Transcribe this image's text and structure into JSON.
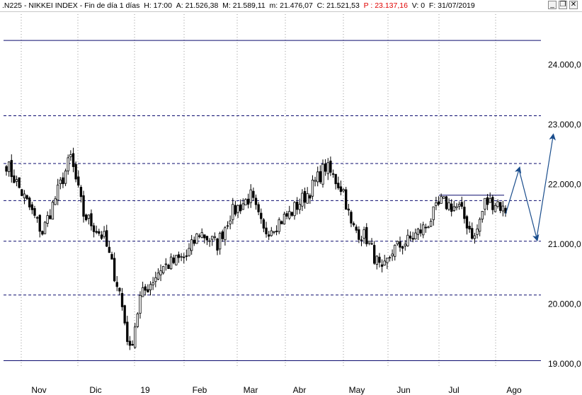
{
  "header": {
    "symbol": ".N225",
    "name": "NIKKEI INDEX",
    "period": "Fin de día 1 días",
    "time": "H: 17:00",
    "open": "A: 21.526,38",
    "high": "M: 21.589,11",
    "low": "m: 21.476,07",
    "close": "C: 21.521,53",
    "price": "P : 23.137,16",
    "volume": "V: 0",
    "date": "F: 31/07/2019",
    "price_color": "#e00000"
  },
  "window_buttons": [
    {
      "name": "minimize",
      "glyph": "_"
    },
    {
      "name": "restore",
      "glyph": "❐"
    },
    {
      "name": "close",
      "glyph": "✕"
    }
  ],
  "chart_data": {
    "type": "candlestick",
    "y_tick_labels": [
      "19.000,0",
      "20.000,0",
      "21.000,0",
      "22.000,0",
      "23.000,0",
      "24.000,0"
    ],
    "y_ticks": [
      19000,
      20000,
      21000,
      22000,
      23000,
      24000
    ],
    "ylim": [
      18950,
      24850
    ],
    "x_tick_labels": [
      "Nov",
      "Dic",
      "19",
      "Feb",
      "Mar",
      "Abr",
      "May",
      "Jun",
      "Jul",
      "Ago"
    ],
    "grid": true,
    "colors": {
      "candle": "#000000",
      "horizontal_line": "#0b0b6e",
      "projection": "#1a4d8c",
      "grid": "#9a9a9a"
    },
    "horizontal_levels": [
      24410,
      23150,
      22350,
      21730,
      21050,
      20150,
      19050
    ],
    "resistance_segment": {
      "y": 21820
    },
    "anchors": [
      {
        "i": 0,
        "v": 22350
      },
      {
        "i": 14,
        "v": 21200
      },
      {
        "i": 25,
        "v": 22450
      },
      {
        "i": 30,
        "v": 21500
      },
      {
        "i": 38,
        "v": 21100
      },
      {
        "i": 44,
        "v": 20200
      },
      {
        "i": 48,
        "v": 19200
      },
      {
        "i": 52,
        "v": 20100
      },
      {
        "i": 60,
        "v": 20600
      },
      {
        "i": 70,
        "v": 20800
      },
      {
        "i": 75,
        "v": 21200
      },
      {
        "i": 82,
        "v": 21000
      },
      {
        "i": 87,
        "v": 21500
      },
      {
        "i": 95,
        "v": 21800
      },
      {
        "i": 100,
        "v": 21200
      },
      {
        "i": 110,
        "v": 21500
      },
      {
        "i": 118,
        "v": 21900
      },
      {
        "i": 124,
        "v": 22300
      },
      {
        "i": 131,
        "v": 21900
      },
      {
        "i": 134,
        "v": 21300
      },
      {
        "i": 140,
        "v": 21100
      },
      {
        "i": 146,
        "v": 20500
      },
      {
        "i": 150,
        "v": 20900
      },
      {
        "i": 156,
        "v": 21050
      },
      {
        "i": 163,
        "v": 21300
      },
      {
        "i": 169,
        "v": 21700
      },
      {
        "i": 176,
        "v": 21600
      },
      {
        "i": 182,
        "v": 21100
      },
      {
        "i": 186,
        "v": 21700
      },
      {
        "i": 191,
        "v": 21700
      },
      {
        "i": 194,
        "v": 21521
      }
    ],
    "num_bars": 195,
    "projection_path": [
      21500,
      22250,
      21100,
      22800
    ]
  }
}
